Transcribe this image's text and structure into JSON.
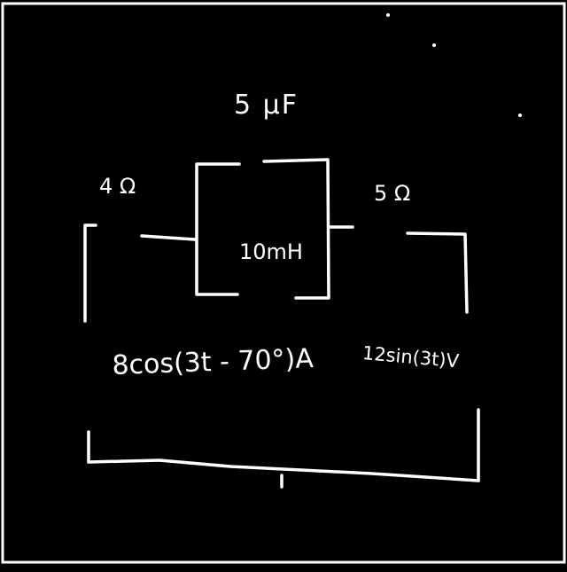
{
  "diagram": {
    "type": "hand-drawn circuit schematic",
    "colors": {
      "background": "#000000",
      "ink": "#ffffff"
    },
    "labels": {
      "capacitor": "5 μF",
      "resistor_left": "4 Ω",
      "resistor_right": "5 Ω",
      "inductor": "10mH",
      "current_source": "8cos(3t - 70°)A",
      "voltage_source": "12sin(3t)V"
    }
  }
}
